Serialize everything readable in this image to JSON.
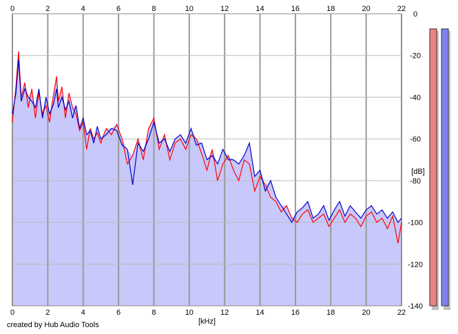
{
  "footer": {
    "credit": "created by Hub Audio Tools"
  },
  "chart_data": {
    "type": "area",
    "title": "",
    "xlabel": "[kHz]",
    "ylabel": "[dB]",
    "xlim": [
      0,
      22
    ],
    "ylim": [
      -140,
      0
    ],
    "x_ticks": [
      "0",
      "2",
      "4",
      "6",
      "8",
      "10",
      "12",
      "14",
      "16",
      "18",
      "20",
      "22"
    ],
    "y_ticks": [
      "0",
      "-20",
      "-40",
      "-60",
      "-80",
      "-100",
      "-120",
      "-140"
    ],
    "grid": true,
    "colors": {
      "fill": "#c8c8fa",
      "left_line": "#ff0000",
      "right_line": "#0000cc",
      "left_meter": "#f08080",
      "right_meter": "#8080f0"
    },
    "series": [
      {
        "channel": "left",
        "x": [
          0.0,
          0.2,
          0.35,
          0.5,
          0.7,
          0.9,
          1.1,
          1.3,
          1.5,
          1.7,
          1.9,
          2.1,
          2.3,
          2.5,
          2.6,
          2.8,
          3.0,
          3.2,
          3.4,
          3.6,
          3.8,
          4.0,
          4.2,
          4.4,
          4.6,
          4.8,
          5.0,
          5.3,
          5.6,
          5.9,
          6.2,
          6.5,
          6.8,
          7.1,
          7.4,
          7.7,
          8.0,
          8.3,
          8.6,
          8.9,
          9.2,
          9.5,
          9.8,
          10.1,
          10.4,
          10.7,
          11.0,
          11.3,
          11.6,
          11.9,
          12.2,
          12.5,
          12.8,
          13.1,
          13.4,
          13.7,
          14.0,
          14.3,
          14.6,
          14.9,
          15.2,
          15.5,
          15.8,
          16.1,
          16.4,
          16.7,
          17.0,
          17.3,
          17.6,
          17.9,
          18.2,
          18.5,
          18.8,
          19.1,
          19.4,
          19.7,
          20.0,
          20.3,
          20.6,
          20.9,
          21.2,
          21.5,
          21.8,
          22.0
        ],
        "y": [
          -52,
          -35,
          -18,
          -40,
          -33,
          -45,
          -36,
          -50,
          -38,
          -48,
          -44,
          -52,
          -40,
          -30,
          -42,
          -35,
          -50,
          -38,
          -45,
          -48,
          -56,
          -52,
          -65,
          -55,
          -60,
          -57,
          -62,
          -55,
          -58,
          -53,
          -60,
          -72,
          -68,
          -60,
          -70,
          -55,
          -50,
          -65,
          -58,
          -70,
          -62,
          -60,
          -65,
          -58,
          -60,
          -67,
          -75,
          -65,
          -80,
          -72,
          -68,
          -75,
          -80,
          -70,
          -72,
          -85,
          -78,
          -82,
          -88,
          -90,
          -95,
          -92,
          -98,
          -100,
          -96,
          -94,
          -100,
          -98,
          -96,
          -102,
          -98,
          -94,
          -100,
          -96,
          -98,
          -102,
          -97,
          -95,
          -100,
          -98,
          -103,
          -97,
          -110,
          -100
        ]
      },
      {
        "channel": "right",
        "x": [
          0.0,
          0.2,
          0.35,
          0.5,
          0.7,
          0.9,
          1.1,
          1.3,
          1.5,
          1.7,
          1.9,
          2.1,
          2.3,
          2.5,
          2.6,
          2.8,
          3.0,
          3.2,
          3.4,
          3.6,
          3.8,
          4.0,
          4.2,
          4.4,
          4.6,
          4.8,
          5.0,
          5.3,
          5.6,
          5.9,
          6.2,
          6.5,
          6.8,
          7.1,
          7.4,
          7.7,
          8.0,
          8.3,
          8.6,
          8.9,
          9.2,
          9.5,
          9.8,
          10.1,
          10.4,
          10.7,
          11.0,
          11.3,
          11.6,
          11.9,
          12.2,
          12.5,
          12.8,
          13.1,
          13.4,
          13.7,
          14.0,
          14.3,
          14.6,
          14.9,
          15.2,
          15.5,
          15.8,
          16.1,
          16.4,
          16.7,
          17.0,
          17.3,
          17.6,
          17.9,
          18.2,
          18.5,
          18.8,
          19.1,
          19.4,
          19.7,
          20.0,
          20.3,
          20.6,
          20.9,
          21.2,
          21.5,
          21.8,
          22.0
        ],
        "y": [
          -48,
          -38,
          -22,
          -42,
          -36,
          -40,
          -42,
          -45,
          -36,
          -50,
          -40,
          -48,
          -44,
          -36,
          -45,
          -40,
          -46,
          -42,
          -50,
          -44,
          -55,
          -50,
          -58,
          -56,
          -62,
          -54,
          -60,
          -58,
          -55,
          -56,
          -63,
          -65,
          -82,
          -62,
          -66,
          -60,
          -52,
          -62,
          -60,
          -66,
          -60,
          -58,
          -62,
          -55,
          -63,
          -62,
          -70,
          -68,
          -72,
          -65,
          -70,
          -70,
          -72,
          -68,
          -62,
          -78,
          -75,
          -85,
          -80,
          -88,
          -92,
          -96,
          -100,
          -95,
          -93,
          -90,
          -98,
          -96,
          -92,
          -99,
          -94,
          -90,
          -97,
          -92,
          -95,
          -98,
          -94,
          -92,
          -96,
          -94,
          -98,
          -95,
          -100,
          -98
        ]
      }
    ],
    "meters": [
      {
        "channel": "left",
        "level": 1.0
      },
      {
        "channel": "right",
        "level": 1.0
      }
    ]
  }
}
